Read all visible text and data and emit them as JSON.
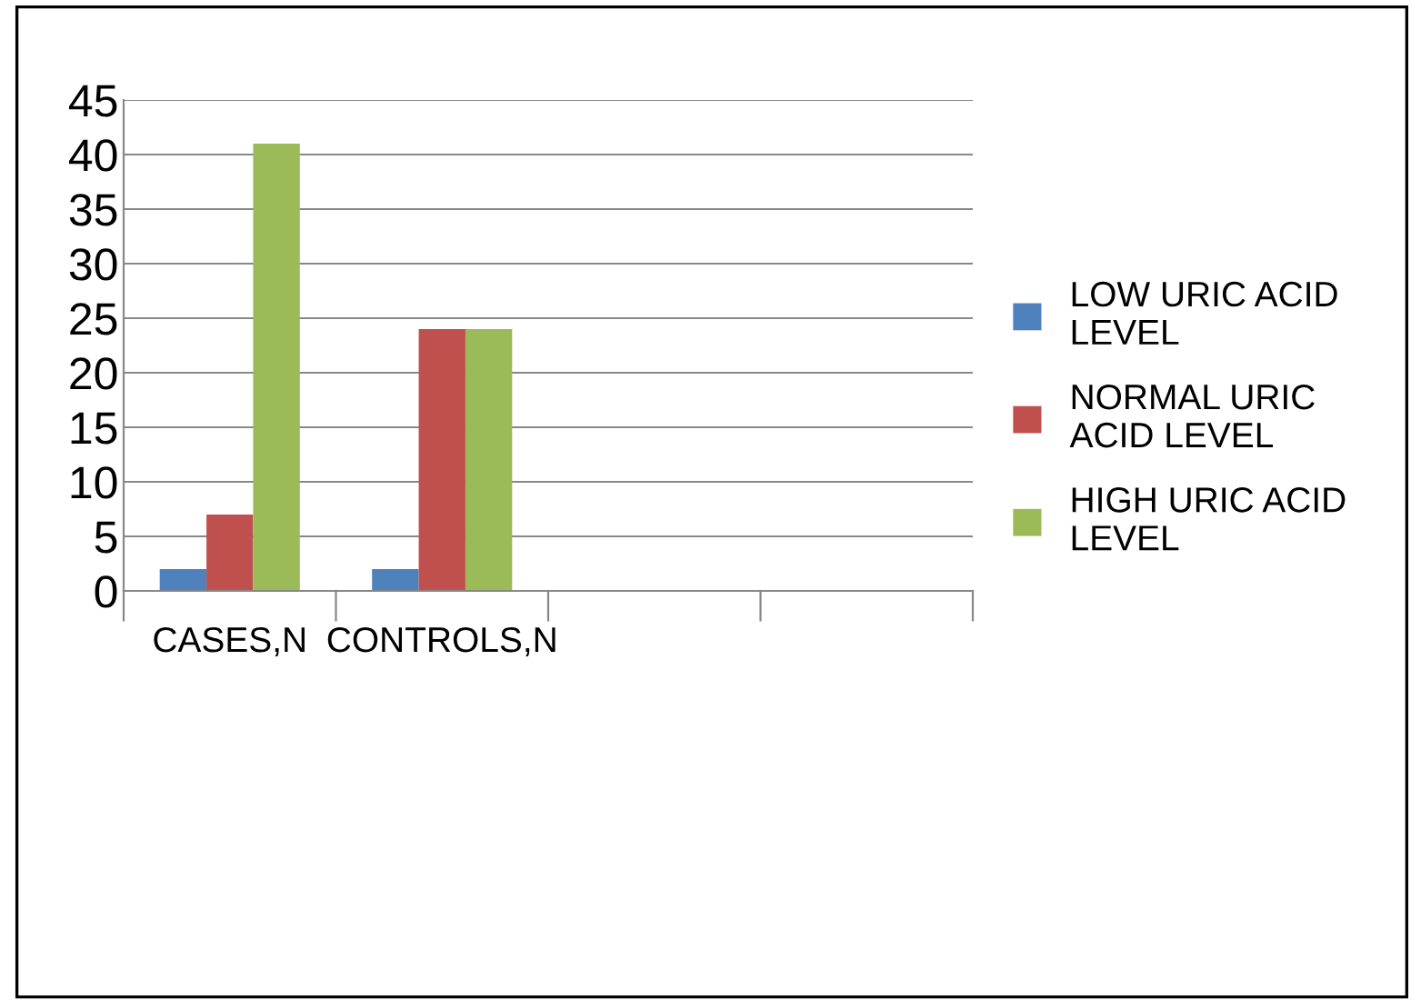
{
  "chart_data": {
    "type": "bar",
    "categories": [
      "CASES,N",
      "CONTROLS,N",
      null,
      null
    ],
    "series": [
      {
        "name": "LOW URIC ACID LEVEL",
        "color": "#4f81bd",
        "values": [
          2,
          2,
          null,
          null
        ]
      },
      {
        "name": "NORMAL URIC ACID LEVEL",
        "color": "#c0504d",
        "values": [
          7,
          24,
          null,
          null
        ]
      },
      {
        "name": "HIGH URIC ACID LEVEL",
        "color": "#9bbb59",
        "values": [
          41,
          24,
          null,
          null
        ]
      }
    ],
    "ylim": [
      0,
      45
    ],
    "yticks": [
      0,
      5,
      10,
      15,
      20,
      25,
      30,
      35,
      40,
      45
    ],
    "grid": "y",
    "legend": "right"
  }
}
